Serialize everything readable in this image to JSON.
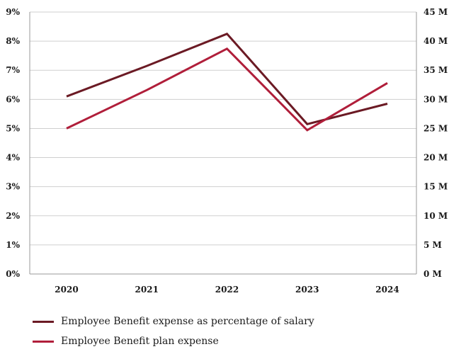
{
  "chart_data": {
    "type": "line",
    "categories": [
      "2020",
      "2021",
      "2022",
      "2023",
      "2024"
    ],
    "series": [
      {
        "name": "Employee Benefit expense as percentage of salary",
        "axis": "left",
        "unit": "%",
        "color": "#6b1a24",
        "values": [
          6.1,
          7.15,
          8.25,
          5.15,
          5.85
        ]
      },
      {
        "name": "Employee Benefit plan expense",
        "axis": "right",
        "unit": "M",
        "color": "#b01e3a",
        "values": [
          25.0,
          31.6,
          38.7,
          24.7,
          32.8
        ]
      }
    ],
    "y_left": {
      "min": 0,
      "max": 9,
      "step": 1,
      "tick_labels": [
        "0%",
        "1%",
        "2%",
        "3%",
        "4%",
        "5%",
        "6%",
        "7%",
        "8%",
        "9%"
      ]
    },
    "y_right": {
      "min": 0,
      "max": 45,
      "step": 5,
      "tick_labels": [
        "0 M",
        "5 M",
        "10 M",
        "15 M",
        "20 M",
        "25 M",
        "30 M",
        "35 M",
        "40 M",
        "45 M"
      ]
    },
    "grid": true,
    "legend_placement": "bottom-left"
  }
}
